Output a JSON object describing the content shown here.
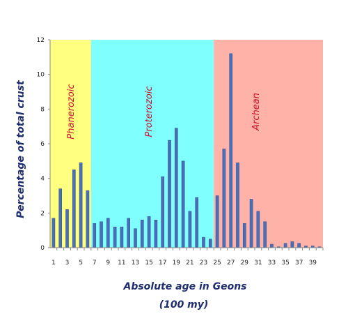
{
  "chart_data": {
    "type": "bar",
    "title": "",
    "xlabel": "Absolute age in Geons",
    "xlabel_sub": "(100 my)",
    "ylabel": "Percentage of total crust",
    "ylim": [
      0,
      12
    ],
    "yticks": [
      "0",
      "2",
      "4",
      "6",
      "8",
      "10",
      "12"
    ],
    "grid": false,
    "x": [
      1,
      2,
      3,
      4,
      5,
      6,
      7,
      8,
      9,
      10,
      11,
      12,
      13,
      14,
      15,
      16,
      17,
      18,
      19,
      20,
      21,
      22,
      23,
      24,
      25,
      26,
      27,
      28,
      29,
      30,
      31,
      32,
      33,
      34,
      35,
      36,
      37,
      38,
      39,
      40
    ],
    "x_tick_labels": [
      "1",
      "3",
      "5",
      "7",
      "9",
      "11",
      "13",
      "15",
      "17",
      "19",
      "21",
      "23",
      "25",
      "27",
      "29",
      "31",
      "33",
      "35",
      "37",
      "39"
    ],
    "values": [
      1.7,
      3.4,
      2.2,
      4.5,
      4.9,
      3.3,
      1.4,
      1.5,
      1.7,
      1.2,
      1.2,
      1.7,
      1.1,
      1.6,
      1.8,
      1.6,
      4.1,
      6.2,
      6.9,
      5.0,
      2.1,
      2.9,
      0.6,
      0.5,
      3.0,
      5.7,
      11.2,
      4.9,
      1.4,
      2.8,
      2.1,
      1.5,
      0.2,
      0.05,
      0.25,
      0.35,
      0.25,
      0.1,
      0.1,
      0.05
    ],
    "eras": [
      {
        "name": "Phanerozoic",
        "from": 0.5,
        "to": 6.5,
        "color": "#ffff80"
      },
      {
        "name": "Proterozoic",
        "from": 6.5,
        "to": 24.5,
        "color": "#80ffff"
      },
      {
        "name": "Archean",
        "from": 24.5,
        "to": 40.5,
        "color": "#ffb3a8"
      }
    ],
    "bar_color": "#4a6fb8"
  }
}
